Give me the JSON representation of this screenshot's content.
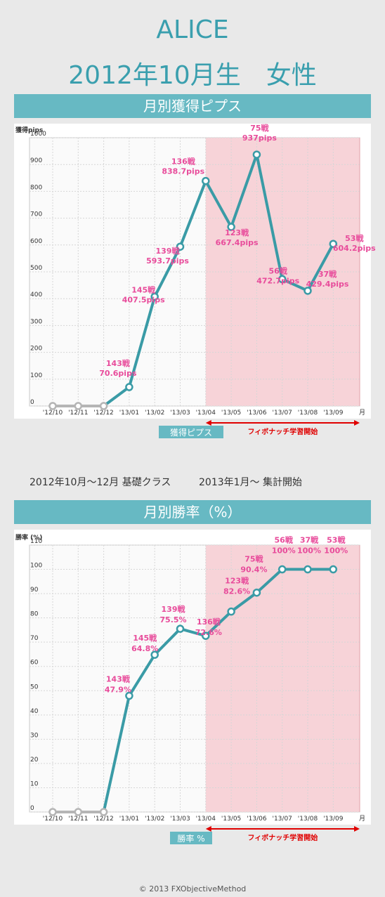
{
  "header": {
    "name": "ALICE",
    "subtitle": "2012年10月生　女性"
  },
  "section1": {
    "band_label": "月別獲得ピプス"
  },
  "section2": {
    "band_label": "月別勝率（%）"
  },
  "notes": {
    "basic_class": "2012年10月〜12月 基礎クラス",
    "tally_start": "2013年1月〜 集計開始"
  },
  "footer": {
    "copyright": "© 2013 FXObjectiveMethod"
  },
  "colors": {
    "accent": "#67b9c3",
    "line": "#3a9ba6",
    "label": "#e84c9b",
    "shade": "#f7d3d8",
    "arrow": "#e00000",
    "inactive": "#b5b5b5"
  },
  "chart_data": [
    {
      "type": "line",
      "ylabel": "獲得pips",
      "xlabel": "月",
      "ylim": [
        0,
        1000
      ],
      "yticks": [
        0,
        100,
        200,
        300,
        400,
        500,
        600,
        700,
        800,
        900,
        1000
      ],
      "categories": [
        "'12/10",
        "'12/11",
        "'12/12",
        "'13/01",
        "'13/02",
        "'13/03",
        "'13/04",
        "'13/05",
        "'13/06",
        "'13/07",
        "'13/08",
        "'13/09"
      ],
      "values": [
        0,
        0,
        0,
        70.6,
        407.5,
        593.7,
        838.7,
        667.4,
        937,
        472.7,
        429.4,
        604.2
      ],
      "annotations": [
        "",
        "",
        "",
        "143戦 70.6pips",
        "145戦 407.5pips",
        "139戦 593.7pips",
        "136戦 838.7pips",
        "123戦 667.4pips",
        "75戦 937pips",
        "56戦 472.7pips",
        "37戦 429.4pips",
        "53戦 604.2pips"
      ],
      "shaded_from": "'13/04",
      "legend": "獲得ピプス",
      "arrow_label": "フィボナッチ学習開始"
    },
    {
      "type": "line",
      "ylabel": "勝率 (%)",
      "xlabel": "月",
      "ylim": [
        0,
        110
      ],
      "yticks": [
        0,
        10,
        20,
        30,
        40,
        50,
        60,
        70,
        80,
        90,
        100,
        110
      ],
      "categories": [
        "'12/10",
        "'12/11",
        "'12/12",
        "'13/01",
        "'13/02",
        "'13/03",
        "'13/04",
        "'13/05",
        "'13/06",
        "'13/07",
        "'13/08",
        "'13/09"
      ],
      "values": [
        0,
        0,
        0,
        47.9,
        64.8,
        75.5,
        72.6,
        82.6,
        90.4,
        100,
        100,
        100
      ],
      "annotations": [
        "",
        "",
        "",
        "143戦 47.9%",
        "145戦 64.8%",
        "139戦 75.5%",
        "136戦 72.6%",
        "123戦 82.6%",
        "75戦 90.4%",
        "56戦 100%",
        "37戦 100%",
        "53戦 100%"
      ],
      "shaded_from": "'13/04",
      "legend": "勝率 %",
      "arrow_label": "フィボナッチ学習開始"
    }
  ]
}
